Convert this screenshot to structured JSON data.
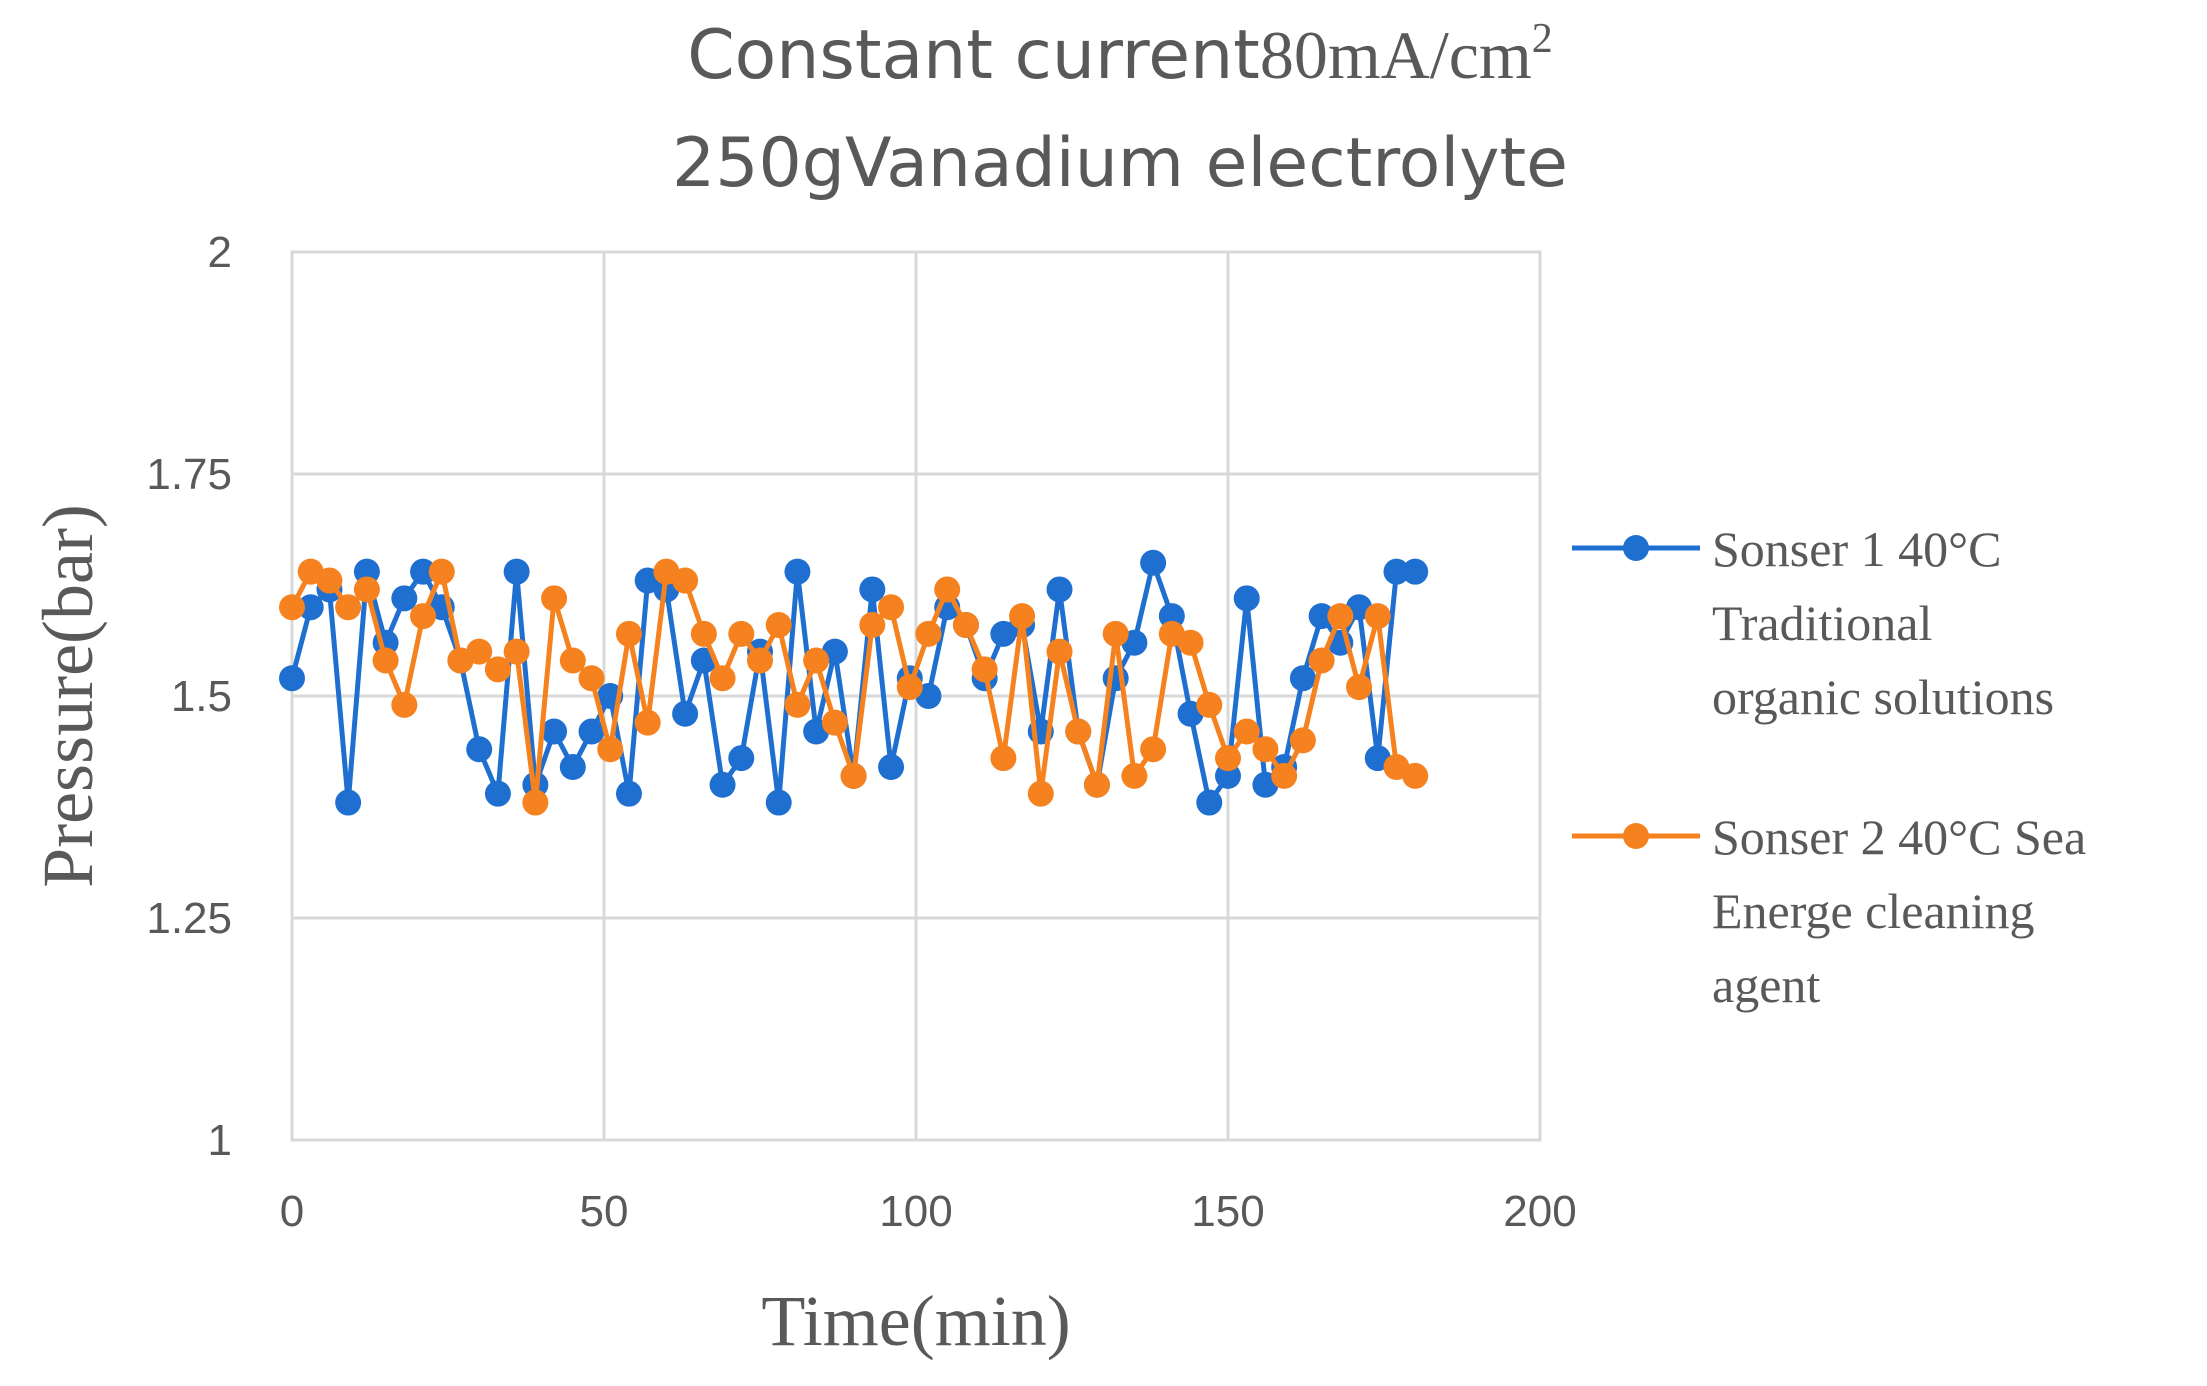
{
  "chart_data": {
    "type": "line",
    "title_line1_prefix": "Constant current",
    "title_line1_serif": "80mA/cm",
    "title_line1_sup": "2",
    "title_line2": "250gVanadium electrolyte",
    "xlabel": "Time(min)",
    "ylabel": "Pressure(bar)",
    "xlim": [
      0,
      200
    ],
    "ylim": [
      1,
      2
    ],
    "x_ticks": [
      "0",
      "50",
      "100",
      "150",
      "200"
    ],
    "y_ticks": [
      "1",
      "1.25",
      "1.5",
      "1.75",
      "2"
    ],
    "grid": true,
    "legend_position": "right",
    "x": [
      0,
      3,
      6,
      9,
      12,
      15,
      18,
      21,
      24,
      27,
      30,
      33,
      36,
      39,
      42,
      45,
      48,
      51,
      54,
      57,
      60,
      63,
      66,
      69,
      72,
      75,
      78,
      81,
      84,
      87,
      90,
      93,
      96,
      99,
      102,
      105,
      108,
      111,
      114,
      117,
      120,
      123,
      126,
      129,
      132,
      135,
      138,
      141,
      144,
      147,
      150,
      153,
      156,
      159,
      162,
      165,
      168,
      171,
      174,
      177,
      180
    ],
    "series": [
      {
        "legend": [
          "Sonser 1 40°C",
          "Traditional",
          "organic solutions"
        ],
        "color": "#1f6fd1",
        "values": [
          1.52,
          1.6,
          1.62,
          1.38,
          1.64,
          1.56,
          1.61,
          1.64,
          1.6,
          1.54,
          1.44,
          1.39,
          1.64,
          1.4,
          1.46,
          1.42,
          1.46,
          1.5,
          1.39,
          1.63,
          1.62,
          1.48,
          1.54,
          1.4,
          1.43,
          1.55,
          1.38,
          1.64,
          1.46,
          1.55,
          1.41,
          1.62,
          1.42,
          1.52,
          1.5,
          1.6,
          1.58,
          1.52,
          1.57,
          1.58,
          1.46,
          1.62,
          1.46,
          1.4,
          1.52,
          1.56,
          1.65,
          1.59,
          1.48,
          1.38,
          1.41,
          1.61,
          1.4,
          1.42,
          1.52,
          1.59,
          1.56,
          1.6,
          1.43,
          1.64,
          1.64
        ]
      },
      {
        "legend": [
          "Sonser 2 40°C Sea",
          "Energe cleaning",
          "agent"
        ],
        "color": "#f5821f",
        "values": [
          1.6,
          1.64,
          1.63,
          1.6,
          1.62,
          1.54,
          1.49,
          1.59,
          1.64,
          1.54,
          1.55,
          1.53,
          1.55,
          1.38,
          1.61,
          1.54,
          1.52,
          1.44,
          1.57,
          1.47,
          1.64,
          1.63,
          1.57,
          1.52,
          1.57,
          1.54,
          1.58,
          1.49,
          1.54,
          1.47,
          1.41,
          1.58,
          1.6,
          1.51,
          1.57,
          1.62,
          1.58,
          1.53,
          1.43,
          1.59,
          1.39,
          1.55,
          1.46,
          1.4,
          1.57,
          1.41,
          1.44,
          1.57,
          1.56,
          1.49,
          1.43,
          1.46,
          1.44,
          1.41,
          1.45,
          1.54,
          1.59,
          1.51,
          1.59,
          1.42,
          1.41
        ]
      }
    ]
  }
}
